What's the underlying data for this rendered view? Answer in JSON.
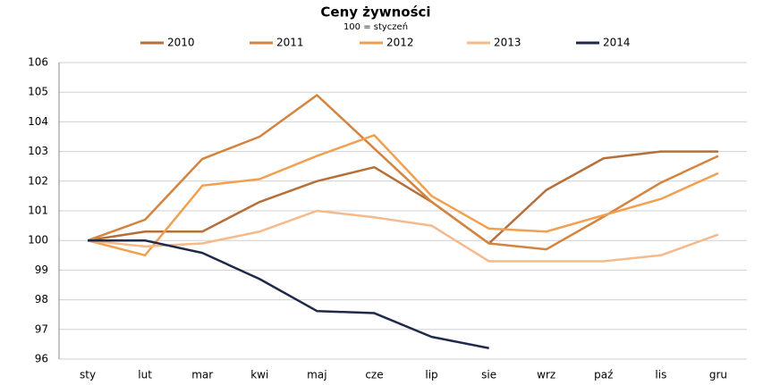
{
  "chart_data": {
    "type": "line",
    "title": "Ceny żywności",
    "subtitle": "100 = styczeń",
    "categories": [
      "sty",
      "lut",
      "mar",
      "kwi",
      "maj",
      "cze",
      "lip",
      "sie",
      "wrz",
      "paź",
      "lis",
      "gru"
    ],
    "series": [
      {
        "name": "2010",
        "color": "#b5703a",
        "values": [
          100,
          100.3,
          100.3,
          101.3,
          102,
          102.47,
          101.3,
          99.9,
          101.7,
          102.77,
          103,
          103
        ]
      },
      {
        "name": "2011",
        "color": "#d4843e",
        "values": [
          100,
          100.7,
          102.75,
          103.5,
          104.9,
          103.1,
          101.3,
          99.9,
          99.7,
          100.8,
          101.95,
          102.85
        ]
      },
      {
        "name": "2012",
        "color": "#f0a050",
        "values": [
          100,
          99.5,
          101.85,
          102.07,
          102.85,
          103.55,
          101.5,
          100.4,
          100.3,
          100.85,
          101.4,
          102.27
        ]
      },
      {
        "name": "2013",
        "color": "#f5b98a",
        "values": [
          100,
          99.8,
          99.9,
          100.3,
          101,
          100.78,
          100.5,
          99.3,
          99.3,
          99.3,
          99.5,
          100.2
        ]
      },
      {
        "name": "2014",
        "color": "#1f2a4a",
        "values": [
          100,
          100,
          99.58,
          98.7,
          97.62,
          97.55,
          96.75,
          96.37,
          null,
          null,
          null,
          null
        ]
      }
    ],
    "ylim": [
      96,
      106
    ],
    "yticks": [
      96,
      97,
      98,
      99,
      100,
      101,
      102,
      103,
      104,
      105,
      106
    ],
    "grid": true
  }
}
